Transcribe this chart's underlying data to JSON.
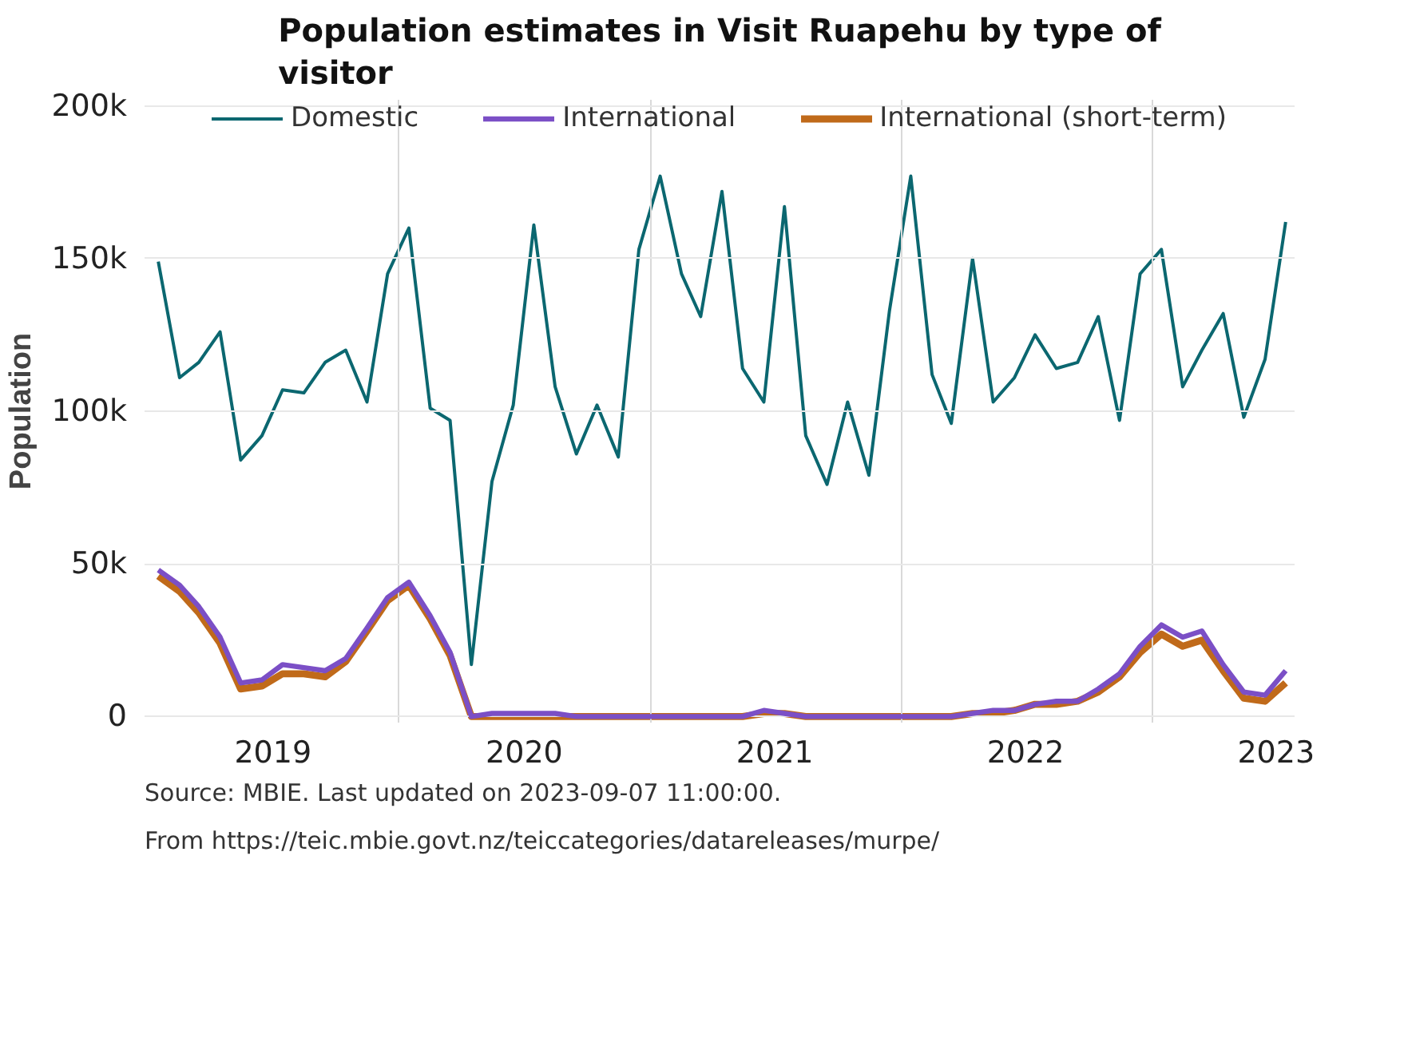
{
  "chart_data": {
    "type": "line",
    "title": "Population estimates in Visit Ruapehu by type of visitor",
    "ylabel": "Population",
    "x": [
      "2019-01-15",
      "2019-02-15",
      "2019-03-15",
      "2019-04-15",
      "2019-05-15",
      "2019-06-15",
      "2019-07-15",
      "2019-08-15",
      "2019-09-15",
      "2019-10-15",
      "2019-11-15",
      "2019-12-15",
      "2020-01-15",
      "2020-02-15",
      "2020-03-15",
      "2020-04-15",
      "2020-05-15",
      "2020-06-15",
      "2020-07-15",
      "2020-08-15",
      "2020-09-15",
      "2020-10-15",
      "2020-11-15",
      "2020-12-15",
      "2021-01-15",
      "2021-02-15",
      "2021-03-15",
      "2021-04-15",
      "2021-05-15",
      "2021-06-15",
      "2021-07-15",
      "2021-08-15",
      "2021-09-15",
      "2021-10-15",
      "2021-11-15",
      "2021-12-15",
      "2022-01-15",
      "2022-02-15",
      "2022-03-15",
      "2022-04-15",
      "2022-05-15",
      "2022-06-15",
      "2022-07-15",
      "2022-08-15",
      "2022-09-15",
      "2022-10-15",
      "2022-11-15",
      "2022-12-15",
      "2023-01-15",
      "2023-02-15",
      "2023-03-15",
      "2023-04-15",
      "2023-05-15",
      "2023-06-15",
      "2023-07-15"
    ],
    "series": [
      {
        "name": "Domestic",
        "color": "#0b6770",
        "values": [
          149000,
          111000,
          116000,
          126000,
          84000,
          92000,
          107000,
          106000,
          116000,
          120000,
          103000,
          145000,
          160000,
          101000,
          97000,
          17000,
          77000,
          102000,
          161000,
          108000,
          86000,
          102000,
          85000,
          153000,
          177000,
          145000,
          131000,
          172000,
          114000,
          103000,
          167000,
          92000,
          76000,
          103000,
          79000,
          133000,
          177000,
          112000,
          96000,
          150000,
          103000,
          111000,
          125000,
          114000,
          116000,
          131000,
          97000,
          145000,
          153000,
          108000,
          120000,
          132000,
          98000,
          117000,
          162000
        ]
      },
      {
        "name": "International",
        "color": "#7b4fc6",
        "values": [
          48000,
          43000,
          36000,
          26000,
          11000,
          12000,
          17000,
          16000,
          15000,
          19000,
          29000,
          39000,
          44000,
          33000,
          21000,
          0,
          1000,
          1000,
          1000,
          1000,
          0,
          0,
          0,
          0,
          0,
          0,
          0,
          0,
          0,
          2000,
          1000,
          0,
          0,
          0,
          0,
          0,
          0,
          0,
          0,
          1000,
          2000,
          2000,
          4000,
          5000,
          5000,
          9000,
          14000,
          23000,
          30000,
          26000,
          28000,
          17000,
          8000,
          7000,
          15000
        ]
      },
      {
        "name": "International (short-term)",
        "color": "#c06a1a",
        "values": [
          46000,
          41000,
          34000,
          24000,
          9000,
          10000,
          14000,
          14000,
          13000,
          18000,
          28000,
          38000,
          43000,
          32000,
          20000,
          0,
          0,
          0,
          0,
          0,
          0,
          0,
          0,
          0,
          0,
          0,
          0,
          0,
          0,
          1000,
          1000,
          0,
          0,
          0,
          0,
          0,
          0,
          0,
          0,
          1000,
          1000,
          2000,
          4000,
          4000,
          5000,
          8000,
          13000,
          21000,
          27000,
          23000,
          25000,
          15000,
          6000,
          5000,
          11000
        ]
      }
    ],
    "xlim": [
      "2018-12-26",
      "2023-07-28"
    ],
    "xticks": [
      {
        "value": "2019-07-01",
        "label": "2019"
      },
      {
        "value": "2020-01-01",
        "label": null
      },
      {
        "value": "2020-07-01",
        "label": "2020"
      },
      {
        "value": "2021-01-01",
        "label": null
      },
      {
        "value": "2021-07-01",
        "label": "2021"
      },
      {
        "value": "2022-01-01",
        "label": null
      },
      {
        "value": "2022-07-01",
        "label": "2022"
      },
      {
        "value": "2023-01-01",
        "label": null
      },
      {
        "value": "2023-07-01",
        "label": "2023"
      }
    ],
    "ylim": [
      -2000,
      202000
    ],
    "yticks": [
      {
        "value": 0,
        "label": "0"
      },
      {
        "value": 50000,
        "label": "50k"
      },
      {
        "value": 100000,
        "label": "100k"
      },
      {
        "value": 150000,
        "label": "150k"
      },
      {
        "value": 200000,
        "label": "200k"
      }
    ],
    "grid": true,
    "legend": "top",
    "marker": "none",
    "line_style": "solid",
    "annotations": [
      "Source: MBIE. Last updated on 2023-09-07 11:00:00.",
      "From https://teic.mbie.govt.nz/teiccategories/datareleases/murpe/"
    ]
  }
}
